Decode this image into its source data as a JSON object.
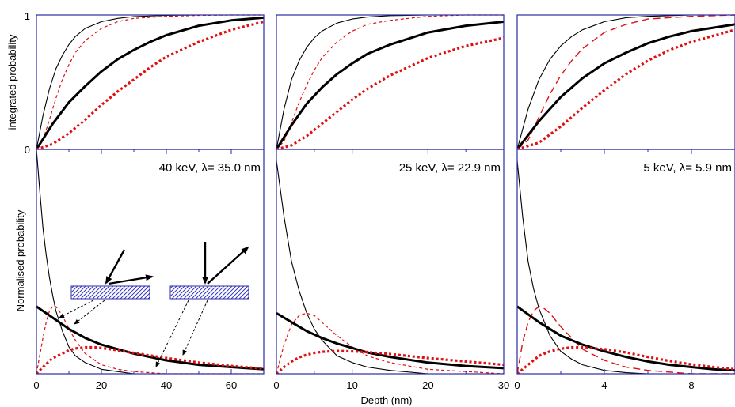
{
  "chart_data": {
    "type": "line",
    "layout": "3 columns x 2 rows, shared y within each row",
    "xlabel": "Depth (nm)",
    "ylabel_top": "integrated probability",
    "ylabel_bottom": "Normalised probability",
    "top_yticks": [
      "0",
      "1"
    ],
    "colors": {
      "frame": "#2c2ca8",
      "black": "#000000",
      "red": "#e01010",
      "inset_fill": "#3a3ac0"
    },
    "panels": [
      {
        "title": "40 keV, λ= 35.0 nm",
        "xlim": [
          0,
          70
        ],
        "xticks": [
          0,
          20,
          40,
          60
        ],
        "top_series": [
          {
            "style": "black-thin",
            "x": [
              0,
              2,
              4,
              6,
              8,
              10,
              12,
              15,
              20,
              25,
              30,
              40,
              50,
              60,
              70
            ],
            "y": [
              0,
              0.25,
              0.45,
              0.6,
              0.7,
              0.78,
              0.84,
              0.9,
              0.95,
              0.975,
              0.988,
              0.997,
              1,
              1,
              1
            ]
          },
          {
            "style": "red-thin-dashed",
            "x": [
              0,
              2,
              4,
              6,
              8,
              10,
              12,
              15,
              20,
              25,
              30,
              40,
              50,
              60,
              70
            ],
            "y": [
              0,
              0.07,
              0.22,
              0.38,
              0.52,
              0.63,
              0.72,
              0.81,
              0.9,
              0.95,
              0.975,
              0.99,
              0.997,
              1,
              1
            ]
          },
          {
            "style": "black-thick",
            "x": [
              0,
              5,
              10,
              15,
              20,
              25,
              30,
              35,
              40,
              50,
              60,
              70
            ],
            "y": [
              0,
              0.19,
              0.35,
              0.47,
              0.58,
              0.67,
              0.74,
              0.8,
              0.85,
              0.92,
              0.96,
              0.98
            ]
          },
          {
            "style": "red-thick-dotted",
            "x": [
              0,
              5,
              10,
              15,
              20,
              25,
              30,
              35,
              40,
              50,
              60,
              70
            ],
            "y": [
              0,
              0.04,
              0.12,
              0.22,
              0.33,
              0.43,
              0.52,
              0.61,
              0.69,
              0.8,
              0.89,
              0.95
            ]
          }
        ],
        "bottom_series": [
          {
            "style": "black-thin",
            "x": [
              0,
              1,
              2,
              3,
              4,
              5,
              6,
              8,
              10,
              12,
              15,
              20,
              25,
              30,
              40,
              70
            ],
            "y": [
              1,
              0.82,
              0.65,
              0.53,
              0.43,
              0.35,
              0.28,
              0.19,
              0.12,
              0.08,
              0.05,
              0.02,
              0.01,
              0,
              0,
              0
            ]
          },
          {
            "style": "red-thin-dashed",
            "x": [
              0,
              1,
              2,
              3,
              4,
              5,
              6,
              7,
              8,
              10,
              12,
              15,
              20,
              25,
              30,
              40,
              70
            ],
            "y": [
              0,
              0.08,
              0.16,
              0.23,
              0.28,
              0.3,
              0.3,
              0.28,
              0.26,
              0.2,
              0.15,
              0.09,
              0.04,
              0.02,
              0.01,
              0,
              0
            ]
          },
          {
            "style": "black-thick",
            "x": [
              0,
              5,
              10,
              15,
              20,
              25,
              30,
              40,
              50,
              60,
              70
            ],
            "y": [
              0.3,
              0.25,
              0.2,
              0.16,
              0.13,
              0.11,
              0.09,
              0.06,
              0.04,
              0.03,
              0.02
            ]
          },
          {
            "style": "red-thick-dotted",
            "x": [
              0,
              2,
              5,
              8,
              10,
              12,
              15,
              18,
              20,
              25,
              30,
              40,
              50,
              60,
              70
            ],
            "y": [
              0,
              0.03,
              0.07,
              0.09,
              0.105,
              0.113,
              0.118,
              0.118,
              0.115,
              0.105,
              0.093,
              0.07,
              0.05,
              0.035,
              0.023
            ]
          }
        ]
      },
      {
        "title": "25 keV, λ= 22.9 nm",
        "xlim": [
          0,
          30
        ],
        "xticks": [
          0,
          10,
          20,
          30
        ],
        "top_series": [
          {
            "style": "black-thin",
            "x": [
              0,
              1,
              2,
              3,
              4,
              5,
              6,
              8,
              10,
              12,
              15,
              20,
              25,
              30
            ],
            "y": [
              0,
              0.3,
              0.52,
              0.66,
              0.76,
              0.83,
              0.88,
              0.94,
              0.97,
              0.985,
              0.995,
              1,
              1,
              1
            ]
          },
          {
            "style": "red-thin-dashed",
            "x": [
              0,
              1,
              2,
              3,
              4,
              5,
              6,
              8,
              10,
              12,
              15,
              20,
              25,
              30
            ],
            "y": [
              0,
              0.06,
              0.2,
              0.35,
              0.48,
              0.59,
              0.68,
              0.8,
              0.88,
              0.93,
              0.96,
              0.99,
              1,
              1
            ]
          },
          {
            "style": "black-thick",
            "x": [
              0,
              2,
              4,
              6,
              8,
              10,
              12,
              15,
              20,
              25,
              30
            ],
            "y": [
              0,
              0.18,
              0.34,
              0.46,
              0.56,
              0.64,
              0.71,
              0.78,
              0.87,
              0.92,
              0.95
            ]
          },
          {
            "style": "red-thick-dotted",
            "x": [
              0,
              2,
              4,
              6,
              8,
              10,
              12,
              15,
              20,
              25,
              30
            ],
            "y": [
              0,
              0.03,
              0.1,
              0.19,
              0.28,
              0.37,
              0.45,
              0.55,
              0.68,
              0.77,
              0.83
            ]
          }
        ],
        "bottom_series": [
          {
            "style": "black-thin",
            "x": [
              0,
              1,
              2,
              3,
              4,
              5,
              6,
              8,
              10,
              12,
              15,
              20,
              25,
              30
            ],
            "y": [
              0.95,
              0.7,
              0.5,
              0.37,
              0.27,
              0.2,
              0.15,
              0.08,
              0.05,
              0.03,
              0.015,
              0,
              0,
              0
            ]
          },
          {
            "style": "red-thin-dashed",
            "x": [
              0,
              1,
              2,
              3,
              4,
              5,
              6,
              7,
              8,
              10,
              12,
              15,
              20,
              25,
              30
            ],
            "y": [
              0,
              0.13,
              0.22,
              0.26,
              0.27,
              0.26,
              0.23,
              0.2,
              0.17,
              0.12,
              0.08,
              0.05,
              0.02,
              0.01,
              0
            ]
          },
          {
            "style": "black-thick",
            "x": [
              0,
              2,
              4,
              6,
              8,
              10,
              12,
              15,
              20,
              25,
              30
            ],
            "y": [
              0.27,
              0.23,
              0.19,
              0.16,
              0.135,
              0.115,
              0.095,
              0.075,
              0.05,
              0.035,
              0.025
            ]
          },
          {
            "style": "red-thick-dotted",
            "x": [
              0,
              1,
              2,
              3,
              4,
              5,
              6,
              8,
              10,
              12,
              15,
              20,
              25,
              30
            ],
            "y": [
              0,
              0.03,
              0.055,
              0.073,
              0.085,
              0.093,
              0.098,
              0.102,
              0.1,
              0.097,
              0.088,
              0.07,
              0.055,
              0.04
            ]
          }
        ]
      },
      {
        "title": "5 keV, λ= 5.9 nm",
        "xlim": [
          0,
          10
        ],
        "xticks": [
          0,
          4,
          8
        ],
        "top_series": [
          {
            "style": "black-thin",
            "x": [
              0,
              0.5,
              1,
              1.5,
              2,
              2.5,
              3,
              4,
              5,
              6,
              8,
              10
            ],
            "y": [
              0,
              0.3,
              0.52,
              0.67,
              0.77,
              0.84,
              0.89,
              0.95,
              0.98,
              0.99,
              1,
              1
            ]
          },
          {
            "style": "red-dashed",
            "x": [
              0,
              0.5,
              1,
              1.5,
              2,
              2.5,
              3,
              4,
              5,
              6,
              8,
              10
            ],
            "y": [
              0,
              0.07,
              0.24,
              0.41,
              0.55,
              0.66,
              0.75,
              0.87,
              0.93,
              0.97,
              0.99,
              1
            ]
          },
          {
            "style": "black-thick",
            "x": [
              0,
              1,
              2,
              3,
              4,
              5,
              6,
              7,
              8,
              10
            ],
            "y": [
              0,
              0.21,
              0.39,
              0.53,
              0.64,
              0.72,
              0.79,
              0.84,
              0.88,
              0.93
            ]
          },
          {
            "style": "red-thick-dotted",
            "x": [
              0,
              1,
              2,
              3,
              4,
              5,
              6,
              7,
              8,
              10
            ],
            "y": [
              0,
              0.05,
              0.17,
              0.31,
              0.44,
              0.56,
              0.66,
              0.74,
              0.8,
              0.89
            ]
          }
        ],
        "bottom_series": [
          {
            "style": "black-thin",
            "x": [
              0,
              0.25,
              0.5,
              0.75,
              1,
              1.5,
              2,
              2.5,
              3,
              4,
              5,
              6,
              8,
              10
            ],
            "y": [
              0.95,
              0.7,
              0.5,
              0.38,
              0.29,
              0.17,
              0.1,
              0.065,
              0.04,
              0.015,
              0.005,
              0,
              0,
              0
            ]
          },
          {
            "style": "red-dashed",
            "x": [
              0,
              0.25,
              0.5,
              0.75,
              1,
              1.25,
              1.5,
              2,
              2.5,
              3,
              4,
              5,
              6,
              8,
              10
            ],
            "y": [
              0,
              0.14,
              0.23,
              0.28,
              0.3,
              0.29,
              0.27,
              0.21,
              0.16,
              0.11,
              0.06,
              0.03,
              0.015,
              0,
              0
            ]
          },
          {
            "style": "black-thick",
            "x": [
              0,
              1,
              2,
              3,
              4,
              5,
              6,
              7,
              8,
              9,
              10
            ],
            "y": [
              0.3,
              0.23,
              0.17,
              0.13,
              0.1,
              0.075,
              0.055,
              0.04,
              0.03,
              0.02,
              0.015
            ]
          },
          {
            "style": "red-thick-dotted",
            "x": [
              0,
              0.5,
              1,
              1.5,
              2,
              2.5,
              3,
              4,
              5,
              6,
              7,
              8,
              9,
              10
            ],
            "y": [
              0,
              0.04,
              0.08,
              0.1,
              0.112,
              0.118,
              0.118,
              0.11,
              0.095,
              0.075,
              0.057,
              0.042,
              0.03,
              0.02
            ]
          }
        ]
      }
    ]
  }
}
